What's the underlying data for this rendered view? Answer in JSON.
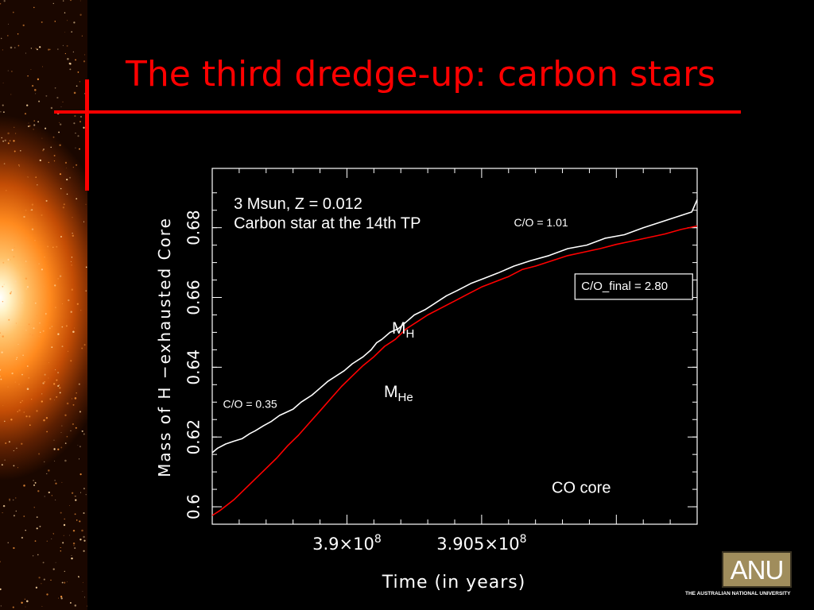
{
  "slide": {
    "title": "The third dredge-up: carbon stars",
    "title_color": "#ff0000",
    "background_color": "#000000"
  },
  "logo": {
    "text": "ANU",
    "caption": "THE AUSTRALIAN NATIONAL UNIVERSITY"
  },
  "chart_data": {
    "type": "line",
    "title": "",
    "xlabel": "Time (in years)",
    "ylabel": "Mass of H −exhausted Core",
    "xlim": [
      389500000,
      391300000
    ],
    "ylim": [
      0.595,
      0.697
    ],
    "x_ticks": [
      {
        "value": 390000000,
        "label": "3.9×10",
        "exp": "8"
      },
      {
        "value": 390500000,
        "label": "3.905×10",
        "exp": "8"
      }
    ],
    "y_ticks": [
      {
        "value": 0.6,
        "label": "0.6"
      },
      {
        "value": 0.62,
        "label": "0.62"
      },
      {
        "value": 0.64,
        "label": "0.64"
      },
      {
        "value": 0.66,
        "label": "0.66"
      },
      {
        "value": 0.68,
        "label": "0.68"
      }
    ],
    "grid": false,
    "colors": {
      "frame": "#ffffff",
      "M_H": "#ffffff",
      "M_He": "#ff0000",
      "text": "#ffffff"
    },
    "series": [
      {
        "name": "M_H",
        "label_main": "M",
        "label_sub": "H",
        "color": "#ffffff",
        "x": [
          389500000,
          389520000,
          389550000,
          389580000,
          389610000,
          389640000,
          389660000,
          389690000,
          389720000,
          389750000,
          389800000,
          389830000,
          389870000,
          389900000,
          389930000,
          389960000,
          389990000,
          390020000,
          390060000,
          390090000,
          390110000,
          390130000,
          390160000,
          390190000,
          390220000,
          390250000,
          390290000,
          390330000,
          390370000,
          390410000,
          390460000,
          390510000,
          390560000,
          390620000,
          390680000,
          390750000,
          390820000,
          390890000,
          390960000,
          391030000,
          391100000,
          391160000,
          391220000,
          391280000,
          391300000
        ],
        "y": [
          0.6155,
          0.6168,
          0.618,
          0.6188,
          0.6195,
          0.621,
          0.6218,
          0.6232,
          0.6245,
          0.6262,
          0.628,
          0.63,
          0.632,
          0.634,
          0.636,
          0.6375,
          0.639,
          0.641,
          0.643,
          0.645,
          0.647,
          0.648,
          0.65,
          0.651,
          0.653,
          0.655,
          0.6565,
          0.6585,
          0.6605,
          0.662,
          0.664,
          0.6655,
          0.667,
          0.669,
          0.6705,
          0.672,
          0.674,
          0.675,
          0.677,
          0.678,
          0.68,
          0.6815,
          0.683,
          0.6845,
          0.688
        ]
      },
      {
        "name": "M_He",
        "label_main": "M",
        "label_sub": "He",
        "color": "#ff0000",
        "x": [
          389500000,
          389530000,
          389580000,
          389620000,
          389660000,
          389700000,
          389740000,
          389780000,
          389820000,
          389860000,
          389900000,
          389940000,
          389980000,
          390020000,
          390060000,
          390100000,
          390140000,
          390180000,
          390220000,
          390260000,
          390300000,
          390350000,
          390400000,
          390450000,
          390500000,
          390550000,
          390600000,
          390650000,
          390700000,
          390760000,
          390820000,
          390880000,
          390940000,
          391000000,
          391060000,
          391120000,
          391180000,
          391240000,
          391300000
        ],
        "y": [
          0.5975,
          0.599,
          0.602,
          0.605,
          0.608,
          0.611,
          0.614,
          0.6175,
          0.6205,
          0.624,
          0.6275,
          0.631,
          0.6345,
          0.6375,
          0.6405,
          0.643,
          0.646,
          0.648,
          0.651,
          0.653,
          0.655,
          0.657,
          0.659,
          0.661,
          0.663,
          0.6645,
          0.666,
          0.668,
          0.669,
          0.6705,
          0.672,
          0.673,
          0.674,
          0.6752,
          0.6762,
          0.6772,
          0.6782,
          0.6795,
          0.6805
        ]
      }
    ],
    "annotations": [
      {
        "text": "3 Msun, Z = 0.012",
        "x": 389580000,
        "y": 0.6866,
        "size": "large"
      },
      {
        "text": "Carbon star at the 14th TP",
        "x": 389580000,
        "y": 0.681,
        "size": "large"
      },
      {
        "text": "C/O = 1.01",
        "x": 390620000,
        "y": 0.6812,
        "size": "small"
      },
      {
        "text": "C/O = 0.35",
        "x": 389540000,
        "y": 0.6292,
        "size": "small"
      },
      {
        "text": "CO core",
        "x": 390760000,
        "y": 0.6052,
        "size": "large"
      },
      {
        "text": "C/O_final = 2.80",
        "x": 390870000,
        "y": 0.6631,
        "size": "small",
        "boxed": true
      }
    ]
  }
}
